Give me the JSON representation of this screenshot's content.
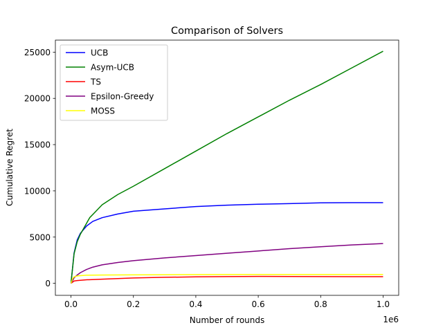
{
  "chart_data": {
    "type": "line",
    "title": "Comparison of Solvers",
    "xlabel": "Number of rounds",
    "ylabel": "Cumulative Regret",
    "x_offset_label": "1e6",
    "xlim": [
      -0.05,
      1.05
    ],
    "ylim": [
      -1300,
      26300
    ],
    "xticks": [
      0.0,
      0.2,
      0.4,
      0.6,
      0.8,
      1.0
    ],
    "xtick_labels": [
      "0.0",
      "0.2",
      "0.4",
      "0.6",
      "0.8",
      "1.0"
    ],
    "yticks": [
      0,
      5000,
      10000,
      15000,
      20000,
      25000
    ],
    "ytick_labels": [
      "0",
      "5000",
      "10000",
      "15000",
      "20000",
      "25000"
    ],
    "grid": false,
    "legend_position": "top-left",
    "series": [
      {
        "name": "UCB",
        "color": "#0000ff",
        "x": [
          0,
          0.01,
          0.02,
          0.03,
          0.05,
          0.07,
          0.1,
          0.15,
          0.2,
          0.3,
          0.4,
          0.5,
          0.6,
          0.7,
          0.8,
          0.9,
          1.0
        ],
        "y": [
          0,
          3300,
          4700,
          5400,
          6200,
          6700,
          7100,
          7500,
          7800,
          8050,
          8300,
          8450,
          8550,
          8620,
          8700,
          8720,
          8720
        ]
      },
      {
        "name": "Asym-UCB",
        "color": "#008000",
        "x": [
          0,
          0.01,
          0.02,
          0.03,
          0.05,
          0.06,
          0.08,
          0.1,
          0.15,
          0.2,
          0.3,
          0.4,
          0.5,
          0.6,
          0.7,
          0.8,
          0.9,
          1.0
        ],
        "y": [
          0,
          3200,
          4500,
          5300,
          6500,
          7100,
          7800,
          8500,
          9600,
          10500,
          12400,
          14300,
          16200,
          18000,
          19800,
          21500,
          23300,
          25100
        ]
      },
      {
        "name": "TS",
        "color": "#ff0000",
        "x": [
          0,
          0.01,
          0.02,
          0.05,
          0.1,
          0.2,
          0.3,
          0.4,
          0.5,
          0.6,
          0.7,
          0.8,
          0.9,
          1.0
        ],
        "y": [
          0,
          250,
          300,
          380,
          450,
          580,
          650,
          700,
          730,
          750,
          740,
          730,
          720,
          720
        ]
      },
      {
        "name": "Epsilon-Greedy",
        "color": "#800080",
        "x": [
          0,
          0.01,
          0.02,
          0.03,
          0.05,
          0.07,
          0.1,
          0.15,
          0.2,
          0.3,
          0.4,
          0.5,
          0.6,
          0.7,
          0.8,
          0.9,
          1.0
        ],
        "y": [
          0,
          600,
          900,
          1150,
          1500,
          1750,
          2000,
          2250,
          2450,
          2750,
          3000,
          3250,
          3500,
          3750,
          3950,
          4150,
          4300
        ]
      },
      {
        "name": "MOSS",
        "color": "#ffff00",
        "x": [
          0,
          0.005,
          0.01,
          0.02,
          0.05,
          0.1,
          0.2,
          0.3,
          0.4,
          0.5,
          0.6,
          0.7,
          0.8,
          0.9,
          1.0
        ],
        "y": [
          0,
          500,
          700,
          800,
          880,
          900,
          920,
          930,
          940,
          950,
          950,
          950,
          950,
          950,
          950
        ]
      }
    ]
  }
}
